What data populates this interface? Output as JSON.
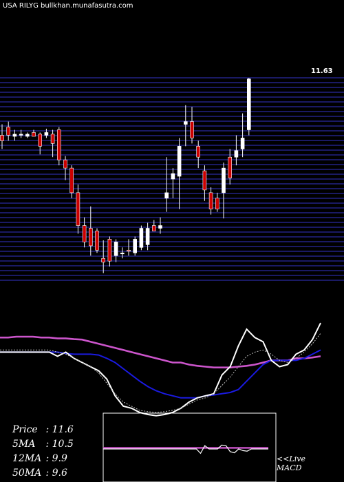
{
  "title": "USA RILYG bullkhan.munafasutra.com",
  "last_price_label": "11.63",
  "stats": [
    {
      "label": "Price",
      "value": "11.6"
    },
    {
      "label": "5MA",
      "value": "10.5"
    },
    {
      "label": "12MA",
      "value": "9.9"
    },
    {
      "label": "50MA",
      "value": "9.6"
    }
  ],
  "macd_label_line1": "<<Live",
  "macd_label_line2": "MACD",
  "colors": {
    "background": "#000000",
    "grid": "#2a2aa0",
    "up_candle": "#ffffff",
    "down_candle": "#cc0000",
    "ma_pink": "#cc55cc",
    "ma_blue": "#1a1ae0",
    "price_line": "#ffffff"
  },
  "chart_data": [
    {
      "type": "candlestick",
      "title": "USA RILYG bullkhan.munafasutra.com",
      "ylim": [
        7.95,
        11.65
      ],
      "last_value": 11.63,
      "candles": [
        {
          "o": 10.6,
          "h": 10.8,
          "l": 10.35,
          "c": 10.5
        },
        {
          "o": 10.75,
          "h": 10.85,
          "l": 10.5,
          "c": 10.6
        },
        {
          "o": 10.58,
          "h": 10.7,
          "l": 10.5,
          "c": 10.62
        },
        {
          "o": 10.6,
          "h": 10.7,
          "l": 10.55,
          "c": 10.62
        },
        {
          "o": 10.58,
          "h": 10.65,
          "l": 10.55,
          "c": 10.62
        },
        {
          "o": 10.65,
          "h": 10.7,
          "l": 10.6,
          "c": 10.58
        },
        {
          "o": 10.62,
          "h": 10.65,
          "l": 10.25,
          "c": 10.4
        },
        {
          "o": 10.6,
          "h": 10.72,
          "l": 10.55,
          "c": 10.65
        },
        {
          "o": 10.62,
          "h": 10.7,
          "l": 10.2,
          "c": 10.45
        },
        {
          "o": 10.7,
          "h": 10.75,
          "l": 10.05,
          "c": 10.15
        },
        {
          "o": 10.15,
          "h": 10.22,
          "l": 9.78,
          "c": 10.0
        },
        {
          "o": 10.0,
          "h": 10.05,
          "l": 9.45,
          "c": 9.55
        },
        {
          "o": 9.55,
          "h": 9.7,
          "l": 8.8,
          "c": 8.95
        },
        {
          "o": 8.95,
          "h": 9.1,
          "l": 8.55,
          "c": 8.65
        },
        {
          "o": 8.9,
          "h": 9.3,
          "l": 8.4,
          "c": 8.58
        },
        {
          "o": 8.85,
          "h": 8.9,
          "l": 8.45,
          "c": 8.5
        },
        {
          "o": 8.35,
          "h": 8.68,
          "l": 8.08,
          "c": 8.28
        },
        {
          "o": 8.7,
          "h": 8.75,
          "l": 8.2,
          "c": 8.3
        },
        {
          "o": 8.4,
          "h": 8.7,
          "l": 8.28,
          "c": 8.65
        },
        {
          "o": 8.45,
          "h": 8.55,
          "l": 8.35,
          "c": 8.45
        },
        {
          "o": 8.5,
          "h": 8.7,
          "l": 8.4,
          "c": 8.48
        },
        {
          "o": 8.45,
          "h": 8.75,
          "l": 8.4,
          "c": 8.7
        },
        {
          "o": 8.55,
          "h": 8.95,
          "l": 8.5,
          "c": 8.9
        },
        {
          "o": 8.6,
          "h": 9.0,
          "l": 8.5,
          "c": 8.9
        },
        {
          "o": 8.95,
          "h": 9.05,
          "l": 8.85,
          "c": 8.85
        },
        {
          "o": 8.9,
          "h": 9.1,
          "l": 8.8,
          "c": 8.95
        },
        {
          "o": 9.45,
          "h": 10.2,
          "l": 9.2,
          "c": 9.55
        },
        {
          "o": 9.8,
          "h": 10.0,
          "l": 9.45,
          "c": 9.9
        },
        {
          "o": 9.85,
          "h": 10.55,
          "l": 9.25,
          "c": 10.4
        },
        {
          "o": 10.8,
          "h": 11.15,
          "l": 10.4,
          "c": 10.85
        },
        {
          "o": 10.85,
          "h": 11.12,
          "l": 10.45,
          "c": 10.55
        },
        {
          "o": 10.4,
          "h": 10.5,
          "l": 10.0,
          "c": 10.2
        },
        {
          "o": 9.95,
          "h": 10.05,
          "l": 9.4,
          "c": 9.6
        },
        {
          "o": 9.55,
          "h": 9.65,
          "l": 9.15,
          "c": 9.25
        },
        {
          "o": 9.45,
          "h": 9.55,
          "l": 9.2,
          "c": 9.25
        },
        {
          "o": 9.55,
          "h": 10.1,
          "l": 9.08,
          "c": 10.0
        },
        {
          "o": 10.2,
          "h": 10.35,
          "l": 9.7,
          "c": 9.82
        },
        {
          "o": 10.2,
          "h": 10.6,
          "l": 10.05,
          "c": 10.32
        },
        {
          "o": 10.35,
          "h": 11.0,
          "l": 10.2,
          "c": 10.55
        },
        {
          "o": 10.7,
          "h": 11.65,
          "l": 10.6,
          "c": 11.63
        }
      ]
    },
    {
      "type": "line",
      "series": [
        {
          "values": [
            9.6,
            9.6,
            9.62,
            9.62,
            9.62,
            9.6,
            9.6,
            9.58,
            9.58,
            9.56,
            9.55,
            9.5,
            9.45,
            9.4,
            9.35,
            9.3,
            9.25,
            9.2,
            9.15,
            9.1,
            9.05,
            9.0,
            9.0,
            8.95,
            8.92,
            8.9,
            8.88,
            8.88,
            8.88,
            8.9,
            8.92,
            8.95,
            9.0,
            9.05,
            9.05,
            9.05,
            9.1,
            9.1,
            9.12,
            9.15
          ]
        },
        {
          "values": [
            9.25,
            9.25,
            9.25,
            9.25,
            9.25,
            9.25,
            9.25,
            9.25,
            9.22,
            9.2,
            9.2,
            9.2,
            9.18,
            9.1,
            9.0,
            8.85,
            8.7,
            8.55,
            8.42,
            8.32,
            8.25,
            8.2,
            8.15,
            8.15,
            8.15,
            8.2,
            8.22,
            8.25,
            8.28,
            8.35,
            8.55,
            8.75,
            8.95,
            9.05,
            9.05,
            9.05,
            9.05,
            9.1,
            9.2,
            9.3
          ]
        },
        {
          "values": [
            9.25,
            9.25,
            9.25,
            9.25,
            9.25,
            9.25,
            9.25,
            9.15,
            9.25,
            9.1,
            9.0,
            8.9,
            8.8,
            8.6,
            8.2,
            7.95,
            7.9,
            7.8,
            7.75,
            7.72,
            7.75,
            7.8,
            7.9,
            8.05,
            8.15,
            8.2,
            8.25,
            8.7,
            8.9,
            9.4,
            9.8,
            9.6,
            9.5,
            9.05,
            8.9,
            8.95,
            9.2,
            9.3,
            9.55,
            9.95
          ]
        },
        {
          "values": [
            9.3,
            9.3,
            9.3,
            9.3,
            9.3,
            9.3,
            9.3,
            9.25,
            9.2,
            9.1,
            9.0,
            8.9,
            8.75,
            8.5,
            8.25,
            8.05,
            7.95,
            7.85,
            7.82,
            7.8,
            7.82,
            7.85,
            7.9,
            8.0,
            8.1,
            8.15,
            8.25,
            8.45,
            8.65,
            8.9,
            9.15,
            9.25,
            9.3,
            9.2,
            9.05,
            9.0,
            9.1,
            9.25,
            9.45,
            9.7
          ]
        }
      ]
    },
    {
      "type": "line",
      "series": [
        {
          "values": [
            0.2,
            0.2,
            0.2,
            0.2,
            0.2,
            0.2,
            0.2,
            0.2,
            0.2,
            0.2,
            0.2,
            0.2,
            0.2,
            0.2,
            0.2,
            0.2,
            0.2,
            0.2,
            0.2,
            0.2,
            0.2,
            0.2,
            0.2,
            0.2,
            0.2,
            0.2,
            0.2,
            0.2,
            0.2,
            0.2,
            0.2,
            0.2,
            0.2,
            0.2,
            0.2,
            0.2,
            0.2,
            0.2,
            0.2,
            0.2
          ]
        },
        {
          "values": [
            0.0,
            0.0,
            0.0,
            0.0,
            0.0,
            0.0,
            0.0,
            0.0,
            0.0,
            0.0,
            0.0,
            0.0,
            0.0,
            0.0,
            0.0,
            0.0,
            0.0,
            0.0,
            0.0,
            0.0,
            0.0,
            0.0,
            0.0,
            -0.8,
            0.6,
            0.0,
            0.0,
            0.0,
            0.7,
            0.6,
            -0.5,
            -0.7,
            0.0,
            -0.3,
            -0.4,
            0.0,
            0.0,
            0.0,
            0.0,
            0.0
          ]
        }
      ]
    }
  ]
}
